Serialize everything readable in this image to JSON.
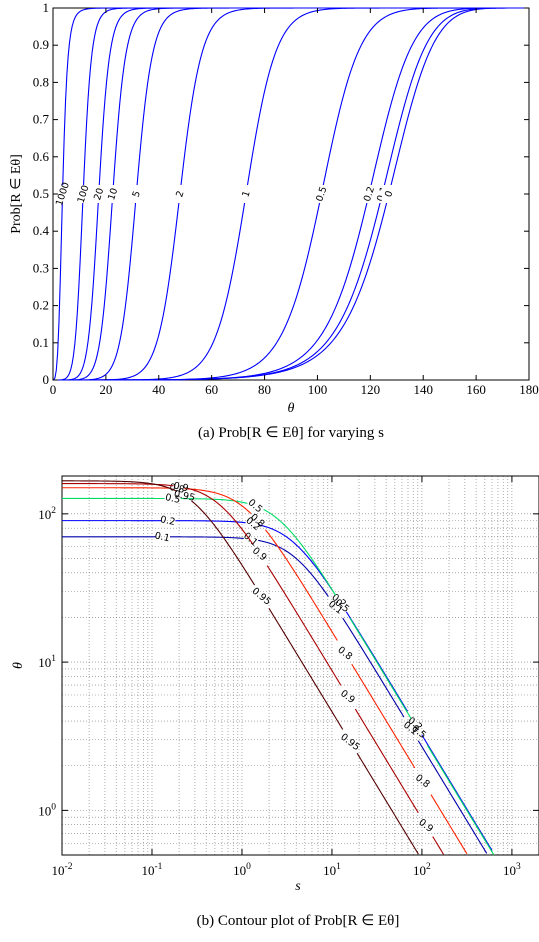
{
  "chart_data": [
    {
      "type": "line",
      "panel": "a",
      "caption": "(a) Prob[R ∈ Eθ] for varying s",
      "xlabel": "θ",
      "ylabel": "Prob[R ∈ Eθ]",
      "xlim": [
        0,
        180
      ],
      "ylim": [
        0,
        1
      ],
      "xticks": [
        "0",
        "20",
        "40",
        "60",
        "80",
        "100",
        "120",
        "140",
        "160",
        "180"
      ],
      "yticks": [
        "0",
        "0.1",
        "0.2",
        "0.3",
        "0.4",
        "0.5",
        "0.6",
        "0.7",
        "0.8",
        "0.9",
        "1"
      ],
      "grid": false,
      "line_color": "#0000ff",
      "series": [
        {
          "name": "1000",
          "half_point_theta": 3.6
        },
        {
          "name": "100",
          "half_point_theta": 11.4
        },
        {
          "name": "20",
          "half_point_theta": 17.3
        },
        {
          "name": "10",
          "half_point_theta": 22.6
        },
        {
          "name": "5",
          "half_point_theta": 31.5
        },
        {
          "name": "2",
          "half_point_theta": 48.0
        },
        {
          "name": "1",
          "half_point_theta": 73.0
        },
        {
          "name": "0.5",
          "half_point_theta": 101.5
        },
        {
          "name": "0.2",
          "half_point_theta": 119.5
        },
        {
          "name": "0.1",
          "half_point_theta": 124.5
        },
        {
          "name": "0",
          "half_point_theta": 127.0
        }
      ]
    },
    {
      "type": "contour",
      "panel": "b",
      "caption": "(b) Contour plot of Prob[R ∈ Eθ]",
      "xlabel": "s",
      "ylabel": "θ",
      "xscale": "log",
      "yscale": "log",
      "xlim": [
        0.01,
        2000
      ],
      "ylim": [
        0.5,
        180
      ],
      "xticks": [
        "10-2",
        "10-1",
        "100",
        "101",
        "102",
        "103"
      ],
      "yticks": [
        "100",
        "101",
        "102"
      ],
      "grid": true,
      "levels": [
        {
          "name": "0.1",
          "color": "#0000aa",
          "plateau_theta": 70
        },
        {
          "name": "0.2",
          "color": "#0000ff",
          "plateau_theta": 90
        },
        {
          "name": "0.5",
          "color": "#00dd66",
          "plateau_theta": 127
        },
        {
          "name": "0.8",
          "color": "#ff2200",
          "plateau_theta": 150
        },
        {
          "name": "0.9",
          "color": "#aa0000",
          "plateau_theta": 160
        },
        {
          "name": "0.95",
          "color": "#550000",
          "plateau_theta": 167
        }
      ]
    }
  ]
}
